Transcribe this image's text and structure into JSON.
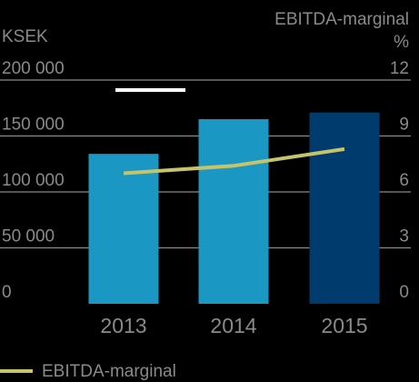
{
  "chart_data": {
    "type": "bar",
    "categories": [
      "2013",
      "2014",
      "2015"
    ],
    "left_axis": {
      "unit_label": "KSEK",
      "ylim": [
        0,
        200000
      ],
      "ticks": [
        0,
        50000,
        100000,
        150000,
        200000
      ],
      "tick_labels": [
        "0",
        "50 000",
        "100 000",
        "150 000",
        "200 000"
      ]
    },
    "right_axis": {
      "title": "EBITDA-marginal",
      "unit_label": "%",
      "ylim": [
        0,
        12
      ],
      "ticks": [
        0,
        3,
        6,
        9,
        12
      ],
      "tick_labels": [
        "0",
        "3",
        "6",
        "9",
        "12"
      ]
    },
    "series": [
      {
        "type": "bar",
        "values": [
          134000,
          165000,
          171000
        ],
        "colors": [
          "#1b97c3",
          "#1b97c3",
          "#003b6e"
        ]
      },
      {
        "name": "EBITDA-marginal",
        "type": "line",
        "axis": "right",
        "values": [
          7.0,
          7.4,
          8.3
        ],
        "color": "#c5c46a"
      }
    ],
    "legend": {
      "label": "EBITDA-marginal",
      "position": "bottom-left"
    },
    "grid": true,
    "colors": {
      "background": "#000000",
      "text": "#8a8a8a",
      "gridline": "#8a8a8a",
      "marker": "#ffffff"
    }
  }
}
